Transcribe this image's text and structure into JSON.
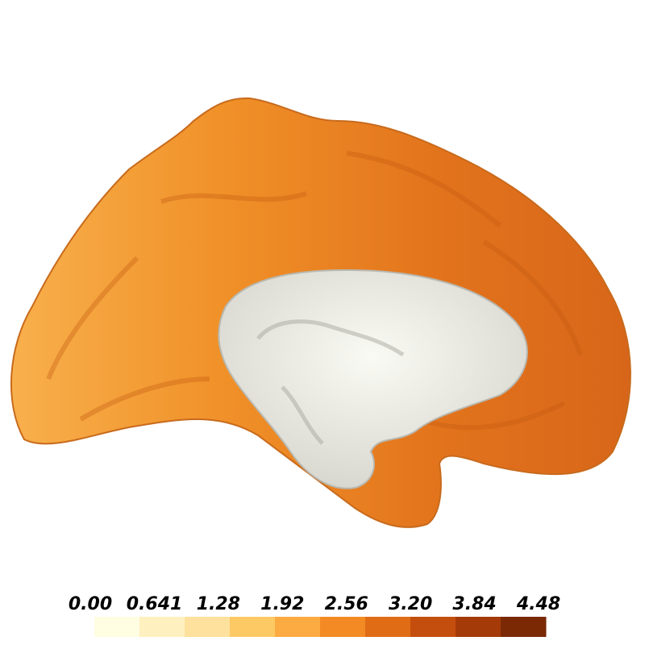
{
  "colorbar": {
    "ticks": [
      {
        "value": 0,
        "label": "0.00"
      },
      {
        "value": 0.641,
        "label": "0.641"
      },
      {
        "value": 1.28,
        "label": "1.28"
      },
      {
        "value": 1.92,
        "label": "1.92"
      },
      {
        "value": 2.56,
        "label": "2.56"
      },
      {
        "value": 3.2,
        "label": "3.20"
      },
      {
        "value": 3.84,
        "label": "3.84"
      },
      {
        "value": 4.48,
        "label": "4.48"
      }
    ],
    "colors": [
      "#fffde2",
      "#fff0c0",
      "#fee19c",
      "#fdc965",
      "#fcaa42",
      "#f48a24",
      "#e06c16",
      "#c44e0d",
      "#a33a08",
      "#7a2904"
    ]
  }
}
